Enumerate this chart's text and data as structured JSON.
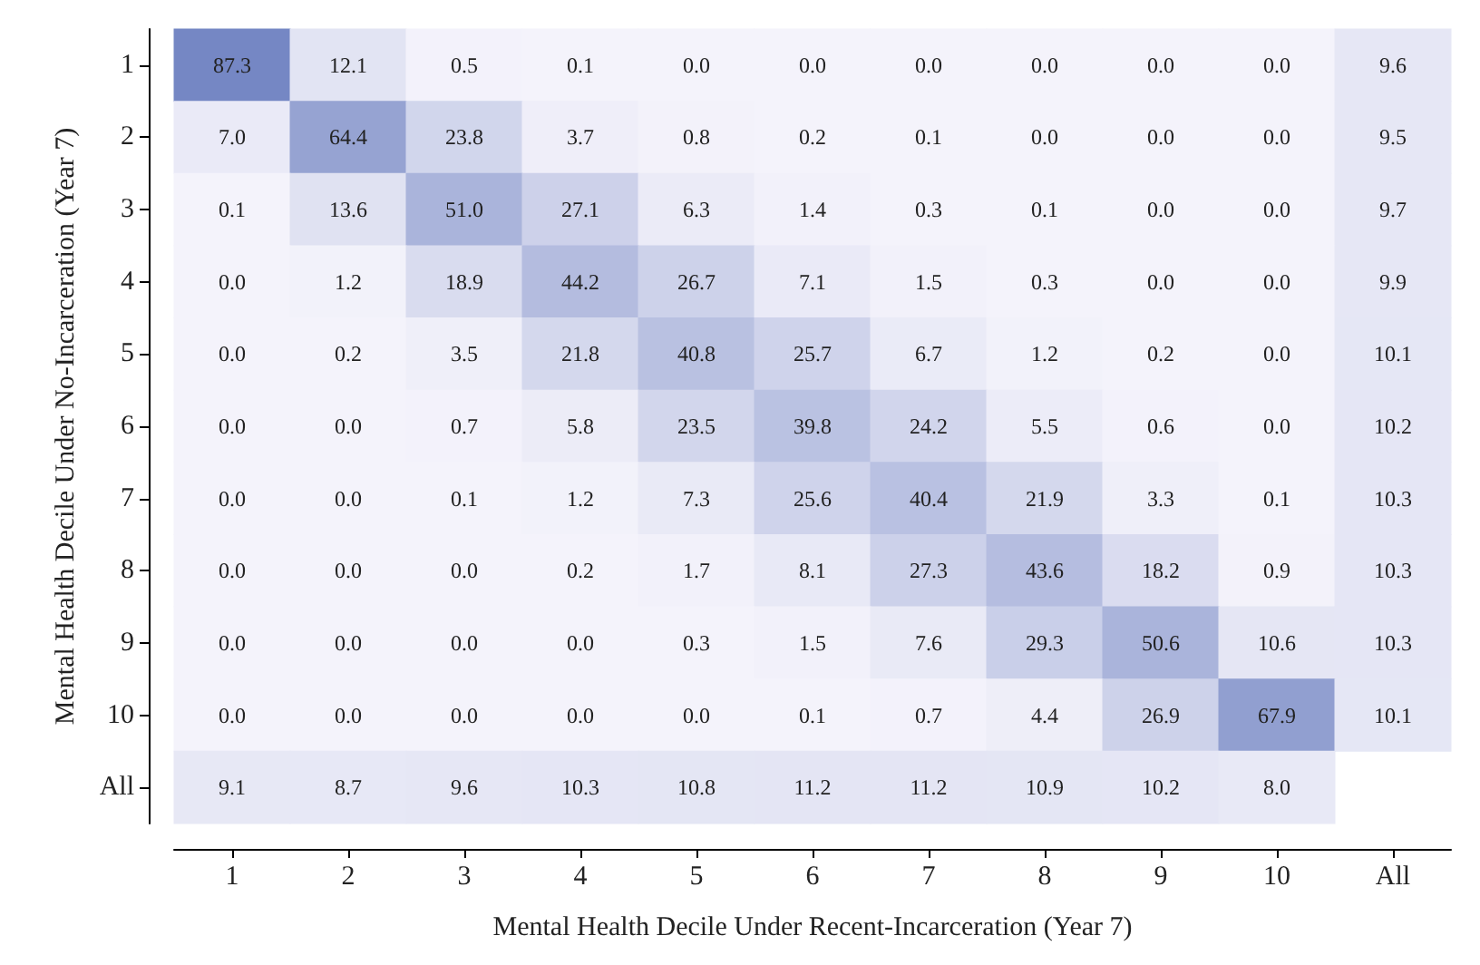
{
  "chart_data": {
    "type": "heatmap",
    "xlabel": "Mental Health Decile Under Recent-Incarceration (Year 7)",
    "ylabel": "Mental Health Decile Under No-Incarceration (Year 7)",
    "categories": [
      "1",
      "2",
      "3",
      "4",
      "5",
      "6",
      "7",
      "8",
      "9",
      "10",
      "All"
    ],
    "y_categories": [
      "1",
      "2",
      "3",
      "4",
      "5",
      "6",
      "7",
      "8",
      "9",
      "10",
      "All"
    ],
    "cells": [
      [
        87.3,
        12.1,
        0.5,
        0.1,
        0.0,
        0.0,
        0.0,
        0.0,
        0.0,
        0.0,
        9.6
      ],
      [
        7.0,
        64.4,
        23.8,
        3.7,
        0.8,
        0.2,
        0.1,
        0.0,
        0.0,
        0.0,
        9.5
      ],
      [
        0.1,
        13.6,
        51.0,
        27.1,
        6.3,
        1.4,
        0.3,
        0.1,
        0.0,
        0.0,
        9.7
      ],
      [
        0.0,
        1.2,
        18.9,
        44.2,
        26.7,
        7.1,
        1.5,
        0.3,
        0.0,
        0.0,
        9.9
      ],
      [
        0.0,
        0.2,
        3.5,
        21.8,
        40.8,
        25.7,
        6.7,
        1.2,
        0.2,
        0.0,
        10.1
      ],
      [
        0.0,
        0.0,
        0.7,
        5.8,
        23.5,
        39.8,
        24.2,
        5.5,
        0.6,
        0.0,
        10.2
      ],
      [
        0.0,
        0.0,
        0.1,
        1.2,
        7.3,
        25.6,
        40.4,
        21.9,
        3.3,
        0.1,
        10.3
      ],
      [
        0.0,
        0.0,
        0.0,
        0.2,
        1.7,
        8.1,
        27.3,
        43.6,
        18.2,
        0.9,
        10.3
      ],
      [
        0.0,
        0.0,
        0.0,
        0.0,
        0.3,
        1.5,
        7.6,
        29.3,
        50.6,
        10.6,
        10.3
      ],
      [
        0.0,
        0.0,
        0.0,
        0.0,
        0.0,
        0.1,
        0.7,
        4.4,
        26.9,
        67.9,
        10.1
      ],
      [
        9.1,
        8.7,
        9.6,
        10.3,
        10.8,
        11.2,
        11.2,
        10.9,
        10.2,
        8.0,
        null
      ]
    ],
    "cell_labels": [
      [
        "87.3",
        "12.1",
        "0.5",
        "0.1",
        "0.0",
        "0.0",
        "0.0",
        "0.0",
        "0.0",
        "0.0",
        "9.6"
      ],
      [
        "7.0",
        "64.4",
        "23.8",
        "3.7",
        "0.8",
        "0.2",
        "0.1",
        "0.0",
        "0.0",
        "0.0",
        "9.5"
      ],
      [
        "0.1",
        "13.6",
        "51.0",
        "27.1",
        "6.3",
        "1.4",
        "0.3",
        "0.1",
        "0.0",
        "0.0",
        "9.7"
      ],
      [
        "0.0",
        "1.2",
        "18.9",
        "44.2",
        "26.7",
        "7.1",
        "1.5",
        "0.3",
        "0.0",
        "0.0",
        "9.9"
      ],
      [
        "0.0",
        "0.2",
        "3.5",
        "21.8",
        "40.8",
        "25.7",
        "6.7",
        "1.2",
        "0.2",
        "0.0",
        "10.1"
      ],
      [
        "0.0",
        "0.0",
        "0.7",
        "5.8",
        "23.5",
        "39.8",
        "24.2",
        "5.5",
        "0.6",
        "0.0",
        "10.2"
      ],
      [
        "0.0",
        "0.0",
        "0.1",
        "1.2",
        "7.3",
        "25.6",
        "40.4",
        "21.9",
        "3.3",
        "0.1",
        "10.3"
      ],
      [
        "0.0",
        "0.0",
        "0.0",
        "0.2",
        "1.7",
        "8.1",
        "27.3",
        "43.6",
        "18.2",
        "0.9",
        "10.3"
      ],
      [
        "0.0",
        "0.0",
        "0.0",
        "0.0",
        "0.3",
        "1.5",
        "7.6",
        "29.3",
        "50.6",
        "10.6",
        "10.3"
      ],
      [
        "0.0",
        "0.0",
        "0.0",
        "0.0",
        "0.0",
        "0.1",
        "0.7",
        "4.4",
        "26.9",
        "67.9",
        "10.1"
      ],
      [
        "9.1",
        "8.7",
        "9.6",
        "10.3",
        "10.8",
        "11.2",
        "11.2",
        "10.9",
        "10.2",
        "8.0",
        null
      ]
    ],
    "grid": false
  }
}
